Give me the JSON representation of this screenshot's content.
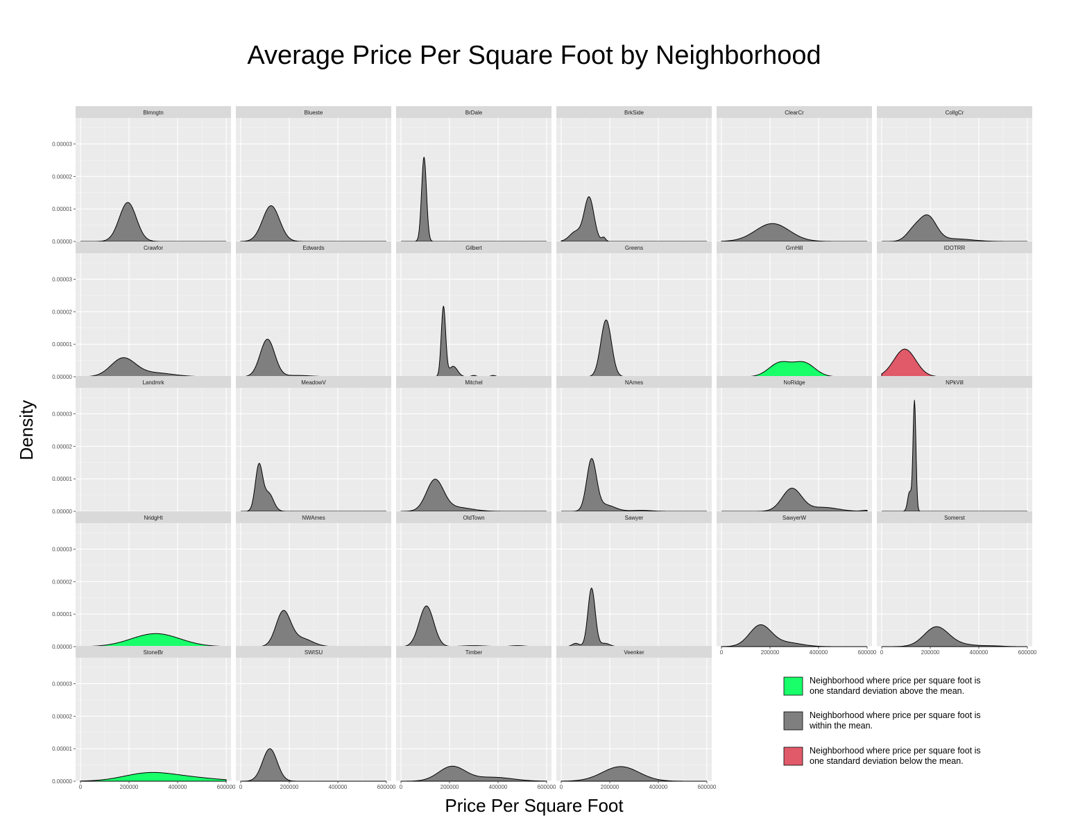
{
  "chart_data": {
    "type": "area",
    "title": "Average Price Per Square Foot by Neighborhood",
    "xlabel": "Price Per Square Foot",
    "ylabel": "Density",
    "xlim": [
      -20000,
      620000
    ],
    "ylim": [
      0,
      3.8e-05
    ],
    "x_ticks": [
      0,
      200000,
      400000,
      600000
    ],
    "x_tick_labels": [
      "0",
      "200000",
      "400000",
      "600000"
    ],
    "y_ticks": [
      0,
      1e-05,
      2e-05,
      3e-05
    ],
    "y_tick_labels": [
      "0.00000",
      "0.00001",
      "0.00002",
      "0.00003"
    ],
    "grid": true,
    "legend_position": "bottom-right",
    "colors": {
      "above": "#19ff6a",
      "within": "#7f7f7f",
      "below": "#e05a6a",
      "panel": "#ebebeb",
      "strip": "#d9d9d9",
      "gridline": "#ffffff"
    },
    "legend": [
      {
        "category": "above",
        "line1": "Neighborhood where price per square foot is",
        "line2": "one standard deviation above the mean."
      },
      {
        "category": "within",
        "line1": "Neighborhood where price per square foot is",
        "line2": "within the mean."
      },
      {
        "category": "below",
        "line1": "Neighborhood where price per square foot is",
        "line2": "one standard deviation below the mean."
      }
    ],
    "panels": [
      {
        "name": "Blmngtn",
        "category": "within",
        "range": [
          0,
          600000
        ],
        "peaks": [
          [
            195000,
            1.2e-05,
            35000
          ]
        ]
      },
      {
        "name": "Blueste",
        "category": "within",
        "range": [
          0,
          600000
        ],
        "peaks": [
          [
            125000,
            1.1e-05,
            35000
          ]
        ]
      },
      {
        "name": "BrDale",
        "category": "within",
        "range": [
          0,
          600000
        ],
        "peaks": [
          [
            95000,
            2.6e-05,
            10000
          ]
        ]
      },
      {
        "name": "BrkSide",
        "category": "within",
        "range": [
          0,
          600000
        ],
        "peaks": [
          [
            115000,
            1.35e-05,
            20000
          ],
          [
            60000,
            3e-06,
            25000
          ],
          [
            175000,
            1.2e-06,
            8000
          ]
        ]
      },
      {
        "name": "ClearCr",
        "category": "within",
        "range": [
          0,
          600000
        ],
        "peaks": [
          [
            210000,
            5.5e-06,
            70000
          ]
        ]
      },
      {
        "name": "CollgCr",
        "category": "within",
        "range": [
          0,
          600000
        ],
        "peaks": [
          [
            190000,
            7.5e-06,
            35000
          ],
          [
            130000,
            3e-06,
            30000
          ],
          [
            300000,
            8e-07,
            70000
          ]
        ]
      },
      {
        "name": "Crawfor",
        "category": "within",
        "range": [
          0,
          600000
        ],
        "peaks": [
          [
            175000,
            5.5e-06,
            50000
          ],
          [
            300000,
            1.2e-06,
            80000
          ]
        ]
      },
      {
        "name": "Edwards",
        "category": "within",
        "range": [
          0,
          600000
        ],
        "peaks": [
          [
            110000,
            1.15e-05,
            30000
          ],
          [
            230000,
            4e-07,
            60000
          ]
        ]
      },
      {
        "name": "Gilbert",
        "category": "within",
        "range": [
          0,
          600000
        ],
        "peaks": [
          [
            175000,
            2.15e-05,
            9000
          ],
          [
            215000,
            3.2e-06,
            18000
          ],
          [
            300000,
            4e-07,
            10000
          ],
          [
            380000,
            4e-07,
            10000
          ]
        ]
      },
      {
        "name": "Greens",
        "category": "within",
        "range": [
          0,
          600000
        ],
        "peaks": [
          [
            185000,
            1.75e-05,
            22000
          ]
        ]
      },
      {
        "name": "GrnHill",
        "category": "above",
        "range": [
          0,
          600000
        ],
        "peaks": [
          [
            240000,
            4.2e-06,
            45000
          ],
          [
            340000,
            4.2e-06,
            45000
          ]
        ]
      },
      {
        "name": "IDOTRR",
        "category": "below",
        "range": [
          0,
          600000
        ],
        "peaks": [
          [
            95000,
            8.5e-06,
            45000
          ]
        ]
      },
      {
        "name": "Landmrk",
        "category": "within",
        "range": [
          0,
          600000
        ],
        "peaks": []
      },
      {
        "name": "MeadowV",
        "category": "within",
        "range": [
          0,
          600000
        ],
        "peaks": [
          [
            75000,
            1.4e-05,
            15000
          ],
          [
            115000,
            5.5e-06,
            20000
          ]
        ]
      },
      {
        "name": "Mitchel",
        "category": "within",
        "range": [
          0,
          600000
        ],
        "peaks": [
          [
            140000,
            9.5e-06,
            35000
          ],
          [
            230000,
            1.2e-06,
            60000
          ]
        ]
      },
      {
        "name": "NAmes",
        "category": "within",
        "range": [
          0,
          600000
        ],
        "peaks": [
          [
            125000,
            1.55e-05,
            20000
          ],
          [
            180000,
            2e-06,
            40000
          ],
          [
            330000,
            3e-07,
            40000
          ]
        ]
      },
      {
        "name": "NoRidge",
        "category": "within",
        "range": [
          0,
          600000
        ],
        "peaks": [
          [
            290000,
            7e-06,
            40000
          ],
          [
            420000,
            1.2e-06,
            60000
          ],
          [
            600000,
            3e-07,
            20000
          ]
        ]
      },
      {
        "name": "NPkVill",
        "category": "within",
        "range": [
          0,
          600000
        ],
        "peaks": [
          [
            135000,
            3.4e-05,
            6000
          ],
          [
            115000,
            6e-06,
            8000
          ]
        ]
      },
      {
        "name": "NridgHt",
        "category": "above",
        "range": [
          0,
          600000
        ],
        "peaks": [
          [
            310000,
            4e-06,
            100000
          ]
        ]
      },
      {
        "name": "NWAmes",
        "category": "within",
        "range": [
          0,
          600000
        ],
        "peaks": [
          [
            175000,
            1.05e-05,
            30000
          ],
          [
            250000,
            2.5e-06,
            45000
          ]
        ]
      },
      {
        "name": "OldTown",
        "category": "within",
        "range": [
          0,
          600000
        ],
        "peaks": [
          [
            105000,
            1.25e-05,
            30000
          ],
          [
            300000,
            3e-07,
            50000
          ],
          [
            480000,
            3e-07,
            30000
          ]
        ]
      },
      {
        "name": "Sawyer",
        "category": "within",
        "range": [
          0,
          600000
        ],
        "peaks": [
          [
            125000,
            1.8e-05,
            15000
          ],
          [
            60000,
            1e-06,
            15000
          ],
          [
            180000,
            1e-06,
            20000
          ]
        ]
      },
      {
        "name": "SawyerW",
        "category": "within",
        "range": [
          0,
          600000
        ],
        "peaks": [
          [
            160000,
            6.5e-06,
            45000
          ],
          [
            270000,
            1.2e-06,
            60000
          ]
        ]
      },
      {
        "name": "Somerst",
        "category": "within",
        "range": [
          0,
          600000
        ],
        "peaks": [
          [
            225000,
            6e-06,
            50000
          ],
          [
            330000,
            6e-07,
            60000
          ],
          [
            460000,
            2e-07,
            40000
          ]
        ]
      },
      {
        "name": "StoneBr",
        "category": "above",
        "range": [
          0,
          600000
        ],
        "peaks": [
          [
            270000,
            2e-06,
            100000
          ],
          [
            420000,
            1.2e-06,
            130000
          ]
        ]
      },
      {
        "name": "SWISU",
        "category": "within",
        "range": [
          0,
          600000
        ],
        "peaks": [
          [
            120000,
            1e-05,
            30000
          ]
        ]
      },
      {
        "name": "Timber",
        "category": "within",
        "range": [
          0,
          600000
        ],
        "peaks": [
          [
            210000,
            4.5e-06,
            55000
          ],
          [
            380000,
            1.2e-06,
            80000
          ]
        ]
      },
      {
        "name": "Veenker",
        "category": "within",
        "range": [
          0,
          600000
        ],
        "peaks": [
          [
            245000,
            4.5e-06,
            75000
          ]
        ]
      }
    ]
  }
}
